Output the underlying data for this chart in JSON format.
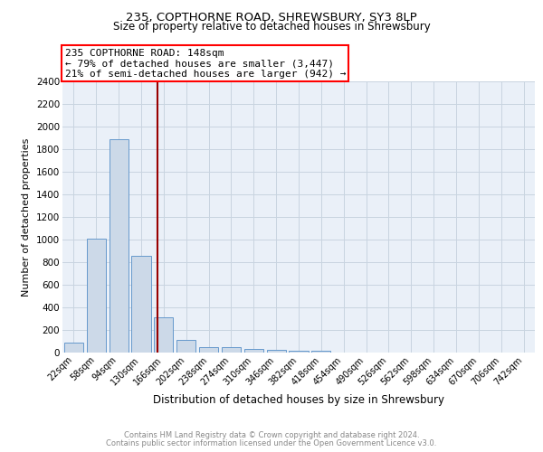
{
  "title1": "235, COPTHORNE ROAD, SHREWSBURY, SY3 8LP",
  "title2": "Size of property relative to detached houses in Shrewsbury",
  "xlabel": "Distribution of detached houses by size in Shrewsbury",
  "ylabel": "Number of detached properties",
  "footer1": "Contains HM Land Registry data © Crown copyright and database right 2024.",
  "footer2": "Contains public sector information licensed under the Open Government Licence v3.0.",
  "annotation_line1": "235 COPTHORNE ROAD: 148sqm",
  "annotation_line2": "← 79% of detached houses are smaller (3,447)",
  "annotation_line3": "21% of semi-detached houses are larger (942) →",
  "bar_color": "#ccd9e8",
  "bar_edgecolor": "#6699cc",
  "vline_color": "#990000",
  "vline_x": 3.72,
  "categories": [
    "22sqm",
    "58sqm",
    "94sqm",
    "130sqm",
    "166sqm",
    "202sqm",
    "238sqm",
    "274sqm",
    "310sqm",
    "346sqm",
    "382sqm",
    "418sqm",
    "454sqm",
    "490sqm",
    "526sqm",
    "562sqm",
    "598sqm",
    "634sqm",
    "670sqm",
    "706sqm",
    "742sqm"
  ],
  "values": [
    90,
    1010,
    1890,
    860,
    310,
    110,
    50,
    45,
    30,
    25,
    20,
    20,
    0,
    0,
    0,
    0,
    0,
    0,
    0,
    0,
    0
  ],
  "ylim": [
    0,
    2400
  ],
  "yticks": [
    0,
    200,
    400,
    600,
    800,
    1000,
    1200,
    1400,
    1600,
    1800,
    2000,
    2200,
    2400
  ],
  "grid_color": "#c8d4e0",
  "bg_color": "#eaf0f8",
  "title1_fontsize": 9.5,
  "title2_fontsize": 8.5,
  "ylabel_fontsize": 8,
  "xlabel_fontsize": 8.5,
  "ytick_fontsize": 7.5,
  "xtick_fontsize": 7,
  "footer_fontsize": 6,
  "annot_fontsize": 8
}
